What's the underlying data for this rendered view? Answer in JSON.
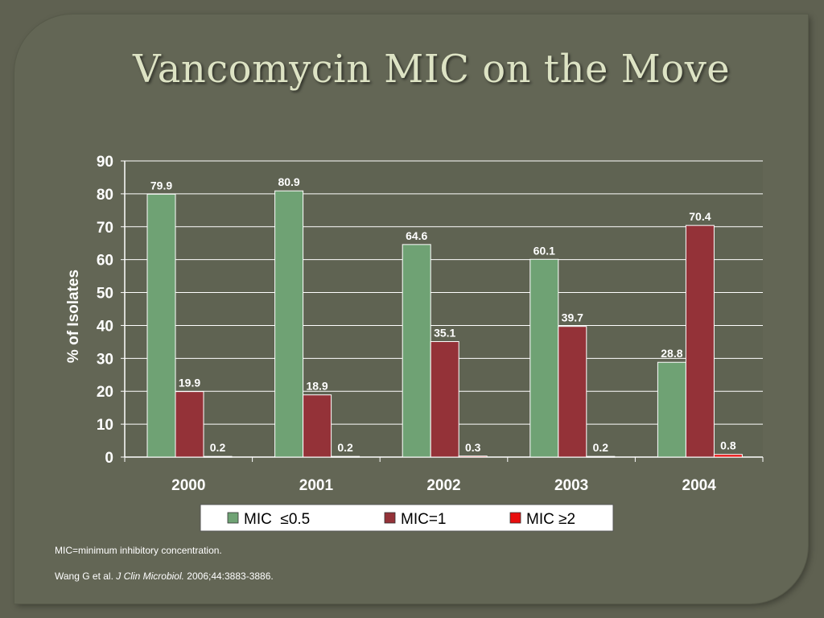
{
  "slide": {
    "title": "Vancomycin MIC on the Move",
    "footnote_def": "MIC=minimum inhibitory concentration.",
    "citation": {
      "authors": "Wang G et al.",
      "journal": "J Clin Microbiol.",
      "details": "2006;44:3883-3886."
    }
  },
  "colors": {
    "background": "#5f6151",
    "title": "#dde3c4",
    "series_mic_le_0_5": "#6fa274",
    "series_mic_1": "#943238",
    "series_mic_ge_2": "#e80e0e"
  },
  "chart_data": {
    "type": "bar",
    "title": "",
    "xlabel": "",
    "ylabel": "% of Isolates",
    "categories": [
      "2000",
      "2001",
      "2002",
      "2003",
      "2004"
    ],
    "ylim": [
      0,
      90
    ],
    "yticks": [
      0,
      10,
      20,
      30,
      40,
      50,
      60,
      70,
      80,
      90
    ],
    "grid": true,
    "legend_position": "bottom",
    "series": [
      {
        "name": "MIC  ≤0.5",
        "color": "#6fa274",
        "values": [
          79.9,
          80.9,
          64.6,
          60.1,
          28.8
        ],
        "labels": [
          "79.9",
          "80.9",
          "64.6",
          "60.1",
          "28.8"
        ]
      },
      {
        "name": "MIC=1",
        "color": "#943238",
        "values": [
          19.9,
          18.9,
          35.1,
          39.7,
          70.4
        ],
        "labels": [
          "19.9",
          "18.9",
          "35.1",
          "39.7",
          "70.4"
        ]
      },
      {
        "name": "MIC ≥2",
        "color": "#e80e0e",
        "values": [
          0.2,
          0.2,
          0.3,
          0.2,
          0.8
        ],
        "labels": [
          "0.2",
          "0.2",
          "0.3",
          "0.2",
          "0.8"
        ]
      }
    ]
  }
}
